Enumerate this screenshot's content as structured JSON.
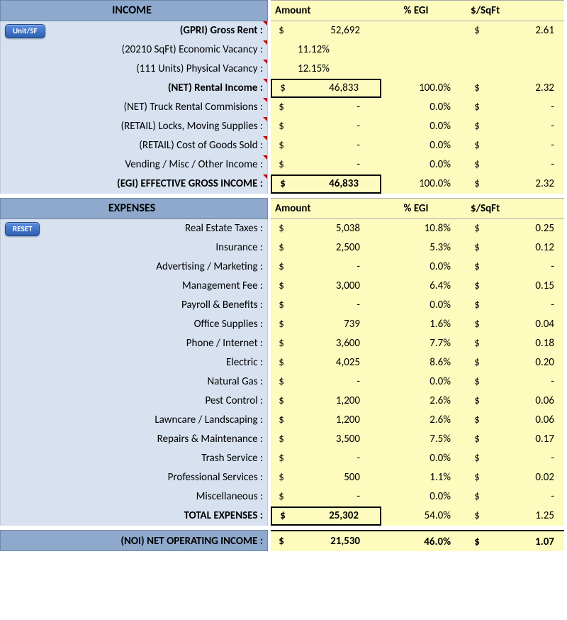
{
  "headers": {
    "income": "INCOME",
    "expenses": "EXPENSES",
    "amount": "Amount",
    "pct_egi": "% EGI",
    "sqft": "$/SqFt"
  },
  "buttons": {
    "unit_sf": "Unit/SF",
    "reset": "RESET"
  },
  "income": {
    "gross_rent": {
      "label": "(GPRI) Gross Rent :",
      "amount": "52,692",
      "sqft": "2.61"
    },
    "econ_vac": {
      "label": "(20210 SqFt) Economic Vacancy :",
      "amount_pct": "11.12%"
    },
    "phys_vac": {
      "label": "(111 Units) Physical Vacancy :",
      "amount_pct": "12.15%"
    },
    "net_rental": {
      "label": "(NET) Rental Income :",
      "amount": "46,833",
      "egi": "100.0%",
      "sqft": "2.32"
    },
    "truck": {
      "label": "(NET) Truck Rental Commisions :",
      "amount": "-",
      "egi": "0.0%",
      "sqft": "-"
    },
    "locks": {
      "label": "(RETAIL) Locks, Moving Supplies :",
      "amount": "-",
      "egi": "0.0%",
      "sqft": "-"
    },
    "cogs": {
      "label": "(RETAIL) Cost of Goods Sold :",
      "amount": "-",
      "egi": "0.0%",
      "sqft": "-"
    },
    "vending": {
      "label": "Vending / Misc / Other Income :",
      "amount": "-",
      "egi": "0.0%",
      "sqft": "-"
    },
    "egi_total": {
      "label": "(EGI) EFFECTIVE GROSS INCOME :",
      "amount": "46,833",
      "egi": "100.0%",
      "sqft": "2.32"
    }
  },
  "expenses": {
    "taxes": {
      "label": "Real Estate Taxes :",
      "amount": "5,038",
      "egi": "10.8%",
      "sqft": "0.25"
    },
    "insurance": {
      "label": "Insurance :",
      "amount": "2,500",
      "egi": "5.3%",
      "sqft": "0.12"
    },
    "adv": {
      "label": "Advertising / Marketing :",
      "amount": "-",
      "egi": "0.0%",
      "sqft": "-"
    },
    "mgmt": {
      "label": "Management Fee :",
      "amount": "3,000",
      "egi": "6.4%",
      "sqft": "0.15"
    },
    "payroll": {
      "label": "Payroll & Benefits :",
      "amount": "-",
      "egi": "0.0%",
      "sqft": "-"
    },
    "office": {
      "label": "Office Supplies :",
      "amount": "739",
      "egi": "1.6%",
      "sqft": "0.04"
    },
    "phone": {
      "label": "Phone / Internet :",
      "amount": "3,600",
      "egi": "7.7%",
      "sqft": "0.18"
    },
    "electric": {
      "label": "Electric :",
      "amount": "4,025",
      "egi": "8.6%",
      "sqft": "0.20"
    },
    "gas": {
      "label": "Natural Gas :",
      "amount": "-",
      "egi": "0.0%",
      "sqft": "-"
    },
    "pest": {
      "label": "Pest Control :",
      "amount": "1,200",
      "egi": "2.6%",
      "sqft": "0.06"
    },
    "lawn": {
      "label": "Lawncare / Landscaping :",
      "amount": "1,200",
      "egi": "2.6%",
      "sqft": "0.06"
    },
    "repairs": {
      "label": "Repairs & Maintenance :",
      "amount": "3,500",
      "egi": "7.5%",
      "sqft": "0.17"
    },
    "trash": {
      "label": "Trash Service :",
      "amount": "-",
      "egi": "0.0%",
      "sqft": "-"
    },
    "prof": {
      "label": "Professional Services :",
      "amount": "500",
      "egi": "1.1%",
      "sqft": "0.02"
    },
    "misc": {
      "label": "Miscellaneous :",
      "amount": "-",
      "egi": "0.0%",
      "sqft": "-"
    },
    "total": {
      "label": "TOTAL EXPENSES :",
      "amount": "25,302",
      "egi": "54.0%",
      "sqft": "1.25"
    }
  },
  "noi": {
    "label": "(NOI) NET OPERATING INCOME :",
    "amount": "21,530",
    "egi": "46.0%",
    "sqft": "1.07"
  }
}
